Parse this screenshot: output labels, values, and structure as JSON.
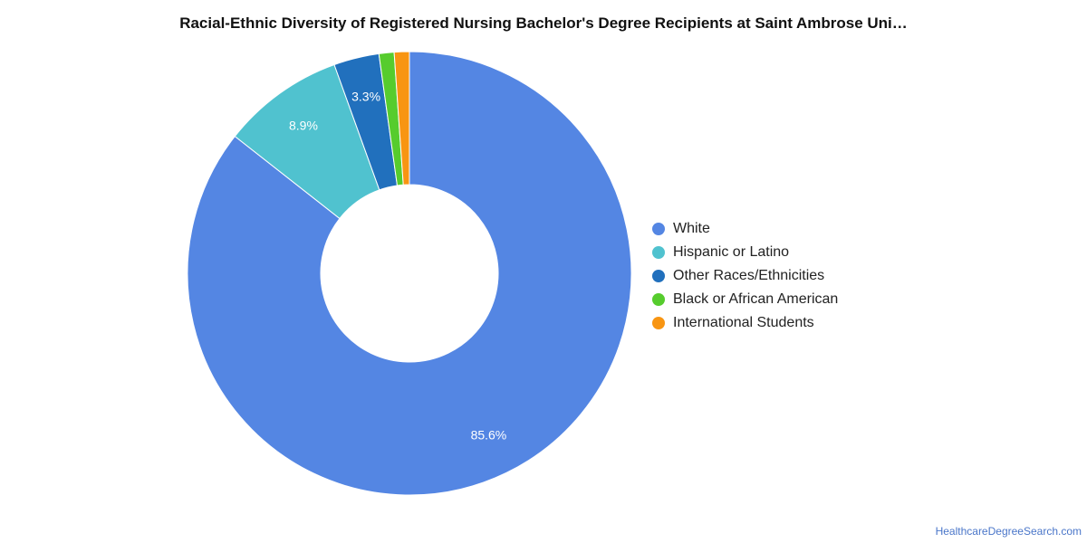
{
  "chart_data": {
    "type": "pie",
    "title": "Racial-Ethnic Diversity of Registered Nursing Bachelor's Degree Recipients at Saint Ambrose Uni…",
    "donut": true,
    "legend_position": "right",
    "categories": [
      "White",
      "Hispanic or Latino",
      "Other Races/Ethnicities",
      "Black or African American",
      "International Students"
    ],
    "values": [
      85.6,
      8.9,
      3.3,
      1.1,
      1.1
    ],
    "data_labels": [
      "85.6%",
      "8.9%",
      "3.3%",
      "",
      ""
    ],
    "colors": [
      "#5486e3",
      "#50c2cf",
      "#2170bd",
      "#56cc2d",
      "#f89512"
    ]
  },
  "footer": {
    "source": "HealthcareDegreeSearch.com"
  }
}
